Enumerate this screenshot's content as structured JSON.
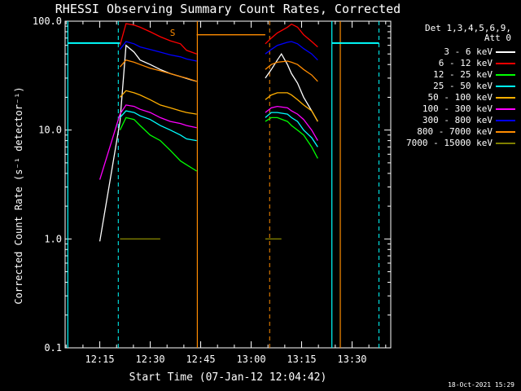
{
  "footer": {
    "stamp": "18-Oct-2021 15:29"
  },
  "chart_data": {
    "type": "line",
    "title": "RHESSI Observing Summary Count Rates, Corrected",
    "xlabel": "Start Time (07-Jan-12 12:04:42)",
    "ylabel": "Corrected Count Rate (s⁻¹ detector⁻¹)",
    "yscale": "log",
    "ylim": [
      0.1,
      100.0
    ],
    "xlim": [
      "12:04:42",
      "13:41:30"
    ],
    "xticks": [
      "12:15",
      "12:30",
      "12:45",
      "13:00",
      "13:15",
      "13:30"
    ],
    "yticks": [
      "0.1",
      "1.0",
      "10.0",
      "100.0"
    ],
    "legend_header": [
      "Det 1,3,4,5,6,9,",
      "Att 0"
    ],
    "legend_position": "right",
    "series": [
      {
        "name": "3 - 6 keV",
        "color": "#ffffff",
        "values": [
          [
            12.25,
            0.95
          ],
          [
            12.35,
            12
          ],
          [
            12.38,
            60
          ],
          [
            12.42,
            52
          ],
          [
            12.45,
            44
          ],
          [
            12.5,
            40
          ],
          [
            12.55,
            36
          ],
          [
            12.6,
            33
          ],
          [
            12.65,
            31
          ],
          [
            12.7,
            29
          ],
          [
            12.73,
            28
          ],
          [
            null,
            null
          ],
          [
            13.07,
            30
          ],
          [
            13.1,
            36
          ],
          [
            13.13,
            44
          ],
          [
            13.15,
            50
          ],
          [
            13.18,
            40
          ],
          [
            13.2,
            33
          ],
          [
            13.23,
            27
          ],
          [
            13.26,
            20
          ],
          [
            13.3,
            15
          ],
          [
            13.33,
            12
          ]
        ]
      },
      {
        "name": "6 - 12 keV",
        "color": "#ff0000",
        "values": [
          [
            12.35,
            60
          ],
          [
            12.38,
            95
          ],
          [
            12.42,
            92
          ],
          [
            12.45,
            88
          ],
          [
            12.5,
            80
          ],
          [
            12.55,
            72
          ],
          [
            12.6,
            66
          ],
          [
            12.65,
            62
          ],
          [
            12.68,
            54
          ],
          [
            12.73,
            50
          ],
          [
            null,
            null
          ],
          [
            13.07,
            62
          ],
          [
            13.1,
            70
          ],
          [
            13.13,
            78
          ],
          [
            13.18,
            88
          ],
          [
            13.2,
            94
          ],
          [
            13.23,
            88
          ],
          [
            13.26,
            75
          ],
          [
            13.3,
            65
          ],
          [
            13.33,
            58
          ]
        ]
      },
      {
        "name": "12 - 25 keV",
        "color": "#00ff00",
        "values": [
          [
            12.35,
            10
          ],
          [
            12.38,
            13
          ],
          [
            12.42,
            12.5
          ],
          [
            12.45,
            11
          ],
          [
            12.5,
            9
          ],
          [
            12.55,
            8
          ],
          [
            12.6,
            6.5
          ],
          [
            12.65,
            5.2
          ],
          [
            12.68,
            4.8
          ],
          [
            12.73,
            4.2
          ],
          [
            null,
            null
          ],
          [
            13.07,
            12
          ],
          [
            13.1,
            13
          ],
          [
            13.13,
            13
          ],
          [
            13.18,
            12
          ],
          [
            13.2,
            11
          ],
          [
            13.23,
            10
          ],
          [
            13.26,
            9
          ],
          [
            13.3,
            7
          ],
          [
            13.33,
            5.5
          ]
        ]
      },
      {
        "name": "25 - 50 keV",
        "color": "#00ffff",
        "values": [
          [
            12.35,
            13
          ],
          [
            12.38,
            15
          ],
          [
            12.42,
            14.5
          ],
          [
            12.45,
            13.5
          ],
          [
            12.5,
            12.5
          ],
          [
            12.55,
            11
          ],
          [
            12.6,
            10
          ],
          [
            12.65,
            9
          ],
          [
            12.68,
            8.3
          ],
          [
            12.73,
            8
          ],
          [
            null,
            null
          ],
          [
            13.07,
            13
          ],
          [
            13.1,
            14.5
          ],
          [
            13.13,
            14.5
          ],
          [
            13.18,
            14
          ],
          [
            13.2,
            13
          ],
          [
            13.23,
            12
          ],
          [
            13.26,
            10
          ],
          [
            13.3,
            8.5
          ],
          [
            13.33,
            7
          ]
        ]
      },
      {
        "name": "50 - 100 keV",
        "color": "#ffaf00",
        "values": [
          [
            12.35,
            20
          ],
          [
            12.38,
            23
          ],
          [
            12.42,
            22
          ],
          [
            12.45,
            21
          ],
          [
            12.5,
            19
          ],
          [
            12.55,
            17
          ],
          [
            12.6,
            16
          ],
          [
            12.65,
            15
          ],
          [
            12.68,
            14.5
          ],
          [
            12.73,
            14
          ],
          [
            null,
            null
          ],
          [
            13.07,
            19
          ],
          [
            13.1,
            21
          ],
          [
            13.13,
            22
          ],
          [
            13.18,
            22
          ],
          [
            13.2,
            21
          ],
          [
            13.23,
            19
          ],
          [
            13.26,
            17
          ],
          [
            13.3,
            15
          ],
          [
            13.33,
            12
          ]
        ]
      },
      {
        "name": "100 - 300 keV",
        "color": "#ff00ff",
        "values": [
          [
            12.25,
            3.5
          ],
          [
            12.35,
            14
          ],
          [
            12.38,
            17
          ],
          [
            12.42,
            16.5
          ],
          [
            12.45,
            15.5
          ],
          [
            12.5,
            14.5
          ],
          [
            12.55,
            13
          ],
          [
            12.6,
            12
          ],
          [
            12.65,
            11.5
          ],
          [
            12.68,
            11
          ],
          [
            12.73,
            10.5
          ],
          [
            null,
            null
          ],
          [
            13.07,
            14.5
          ],
          [
            13.1,
            16
          ],
          [
            13.13,
            16.5
          ],
          [
            13.18,
            16
          ],
          [
            13.2,
            15
          ],
          [
            13.23,
            14
          ],
          [
            13.26,
            12.5
          ],
          [
            13.3,
            10
          ],
          [
            13.33,
            8
          ]
        ]
      },
      {
        "name": "300 - 800 keV",
        "color": "#0000ff",
        "values": [
          [
            12.35,
            55
          ],
          [
            12.38,
            65
          ],
          [
            12.42,
            62
          ],
          [
            12.45,
            58
          ],
          [
            12.5,
            55
          ],
          [
            12.55,
            52
          ],
          [
            12.6,
            49
          ],
          [
            12.65,
            47
          ],
          [
            12.68,
            45
          ],
          [
            12.73,
            43
          ],
          [
            null,
            null
          ],
          [
            13.07,
            50
          ],
          [
            13.1,
            55
          ],
          [
            13.13,
            60
          ],
          [
            13.18,
            64
          ],
          [
            13.2,
            65
          ],
          [
            13.23,
            62
          ],
          [
            13.26,
            56
          ],
          [
            13.3,
            50
          ],
          [
            13.33,
            44
          ]
        ]
      },
      {
        "name": "800 - 7000 keV",
        "color": "#ff8c00",
        "values": [
          [
            12.35,
            38
          ],
          [
            12.38,
            44
          ],
          [
            12.42,
            42
          ],
          [
            12.45,
            40
          ],
          [
            12.5,
            37
          ],
          [
            12.55,
            35
          ],
          [
            12.6,
            33
          ],
          [
            12.65,
            31
          ],
          [
            12.68,
            30
          ],
          [
            12.73,
            28
          ],
          [
            null,
            null
          ],
          [
            12.73,
            75
          ],
          [
            13.07,
            75
          ],
          [
            null,
            null
          ],
          [
            13.07,
            36
          ],
          [
            13.1,
            40
          ],
          [
            13.13,
            42
          ],
          [
            13.18,
            43
          ],
          [
            13.2,
            42
          ],
          [
            13.23,
            40
          ],
          [
            13.26,
            36
          ],
          [
            13.3,
            32
          ],
          [
            13.33,
            28
          ]
        ]
      },
      {
        "name": "7000 - 15000 keV",
        "color": "#808000",
        "values": [
          [
            12.35,
            1.0
          ],
          [
            12.42,
            1.0
          ],
          [
            12.45,
            1.0
          ],
          [
            12.5,
            1.0
          ],
          [
            12.55,
            1.0
          ],
          [
            null,
            null
          ],
          [
            13.07,
            1.0
          ],
          [
            13.1,
            1.0
          ],
          [
            13.13,
            1.0
          ],
          [
            13.15,
            1.0
          ]
        ]
      }
    ],
    "markers": {
      "s_label": "S",
      "solid_lines": [
        {
          "t": "12:05:30",
          "color": "#00ffff"
        },
        {
          "t": "12:44:00",
          "color": "#ff8c00"
        },
        {
          "t": "13:24:00",
          "color": "#00ffff"
        },
        {
          "t": "13:26:30",
          "color": "#ff8c00"
        }
      ],
      "dashed_lines": [
        {
          "t": "12:20:30",
          "color": "#00ffff"
        },
        {
          "t": "13:05:30",
          "color": "#ff8c00"
        },
        {
          "t": "13:38:00",
          "color": "#00ffff"
        }
      ],
      "att_level": {
        "value": 63,
        "color": "#00ffff"
      }
    }
  }
}
